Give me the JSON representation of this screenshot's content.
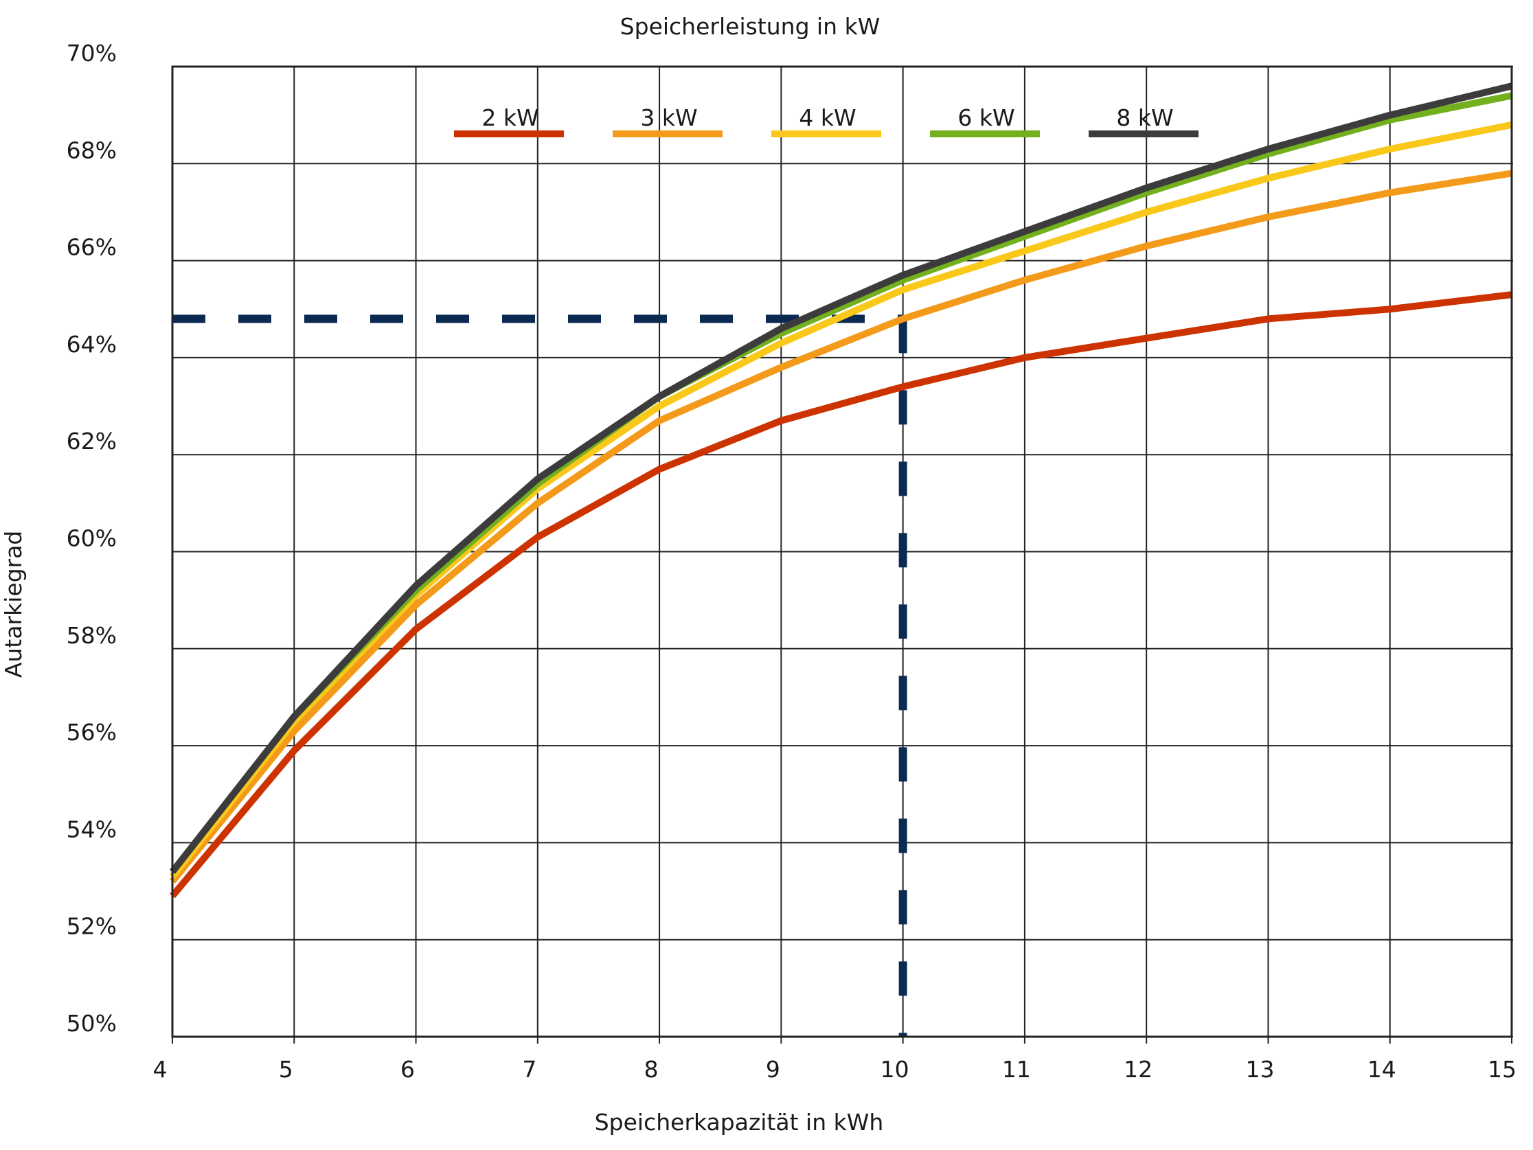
{
  "chart_data": {
    "type": "line",
    "title": "",
    "legend_title": "Speicherleistung in kW",
    "xlabel": "Speicherkapazität in kWh",
    "ylabel": "Autarkiegrad",
    "xlim": [
      4,
      15
    ],
    "ylim": [
      50,
      70
    ],
    "x_ticks": [
      4,
      5,
      6,
      7,
      8,
      9,
      10,
      11,
      12,
      13,
      14,
      15
    ],
    "x_tick_labels": [
      "4",
      "5",
      "6",
      "7",
      "8",
      "9",
      "10",
      "11",
      "12",
      "13",
      "14",
      "15"
    ],
    "y_ticks": [
      50,
      52,
      54,
      56,
      58,
      60,
      62,
      64,
      66,
      68,
      70
    ],
    "y_tick_labels": [
      "50%",
      "52%",
      "54%",
      "56%",
      "58%",
      "60%",
      "62%",
      "64%",
      "66%",
      "68%",
      "70%"
    ],
    "grid": true,
    "legend_position": "top",
    "x": [
      4,
      5,
      6,
      7,
      8,
      9,
      10,
      11,
      12,
      13,
      14,
      15
    ],
    "series": [
      {
        "name": "2 kW",
        "color": "#cc3300",
        "values": [
          52.9,
          55.9,
          58.4,
          60.3,
          61.7,
          62.7,
          63.4,
          64.0,
          64.4,
          64.8,
          65.0,
          65.3
        ]
      },
      {
        "name": "3 kW",
        "color": "#f39a1a",
        "values": [
          53.2,
          56.3,
          58.9,
          61.0,
          62.7,
          63.8,
          64.8,
          65.6,
          66.3,
          66.9,
          67.4,
          67.8
        ]
      },
      {
        "name": "4 kW",
        "color": "#f9c81a",
        "values": [
          53.3,
          56.5,
          59.1,
          61.3,
          63.0,
          64.3,
          65.4,
          66.2,
          67.0,
          67.7,
          68.3,
          68.8
        ]
      },
      {
        "name": "6 kW",
        "color": "#72b01d",
        "values": [
          53.4,
          56.6,
          59.2,
          61.4,
          63.2,
          64.5,
          65.6,
          66.5,
          67.4,
          68.2,
          68.9,
          69.4
        ]
      },
      {
        "name": "8 kW",
        "color": "#3c3c3c",
        "values": [
          53.4,
          56.6,
          59.3,
          61.5,
          63.2,
          64.6,
          65.7,
          66.6,
          67.5,
          68.3,
          69.0,
          69.6
        ]
      }
    ],
    "reference_lines": {
      "color": "#0b2a52",
      "horizontal_y": 64.8,
      "horizontal_x_range": [
        4,
        10
      ],
      "vertical_x": 10,
      "vertical_y_range": [
        50,
        64.8
      ]
    }
  }
}
